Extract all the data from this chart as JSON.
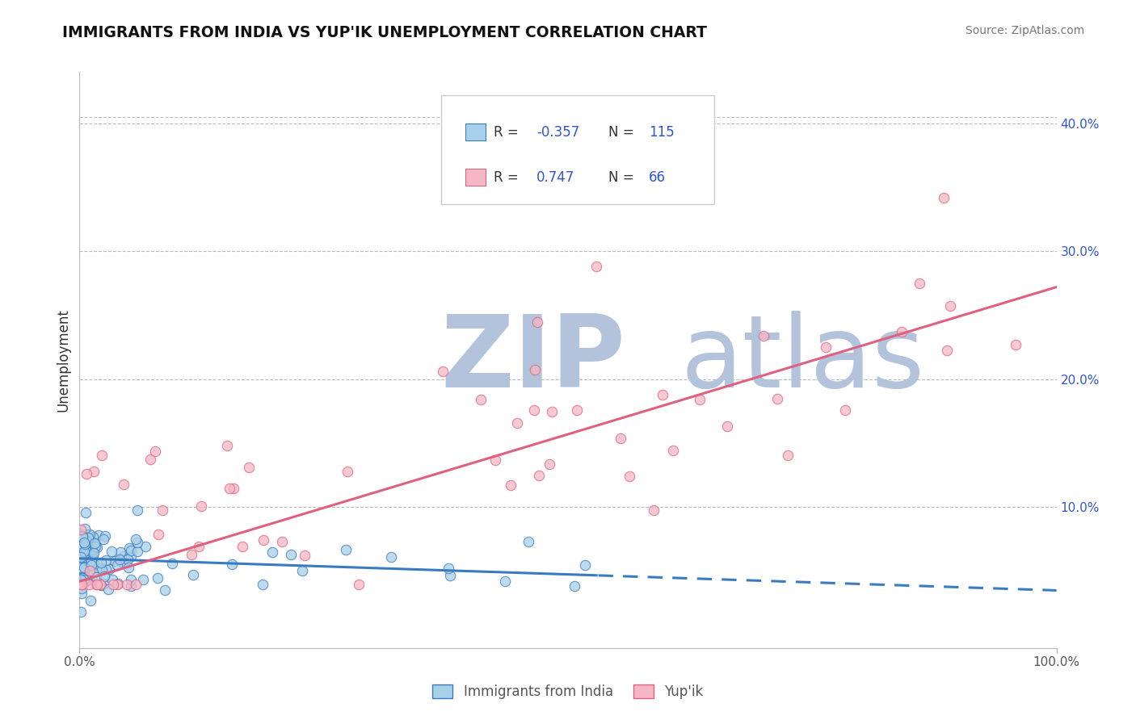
{
  "title": "IMMIGRANTS FROM INDIA VS YUP'IK UNEMPLOYMENT CORRELATION CHART",
  "source": "Source: ZipAtlas.com",
  "ylabel": "Unemployment",
  "xlim": [
    0,
    1.0
  ],
  "ylim": [
    -0.01,
    0.44
  ],
  "xticklabels": [
    "0.0%",
    "",
    "",
    "",
    "",
    "",
    "",
    "",
    "",
    "",
    "100.0%"
  ],
  "yticks_right": [
    0.1,
    0.2,
    0.3,
    0.4
  ],
  "yticklabels_right": [
    "10.0%",
    "20.0%",
    "30.0%",
    "40.0%"
  ],
  "legend_r1": "-0.357",
  "legend_n1": "115",
  "legend_r2": "0.747",
  "legend_n2": "66",
  "color_india": "#a8d0e8",
  "color_yupik": "#f4b8c4",
  "color_line_india": "#3a7abf",
  "color_line_yupik": "#e06080",
  "watermark": "ZIPAtlas",
  "watermark_color_r": 180,
  "watermark_color_g": 195,
  "watermark_color_b": 220,
  "background_color": "#ffffff",
  "india_line_intercept": 0.06,
  "india_line_slope": -0.025,
  "india_line_solid_end": 0.53,
  "yupik_line_intercept": 0.042,
  "yupik_line_slope": 0.23
}
